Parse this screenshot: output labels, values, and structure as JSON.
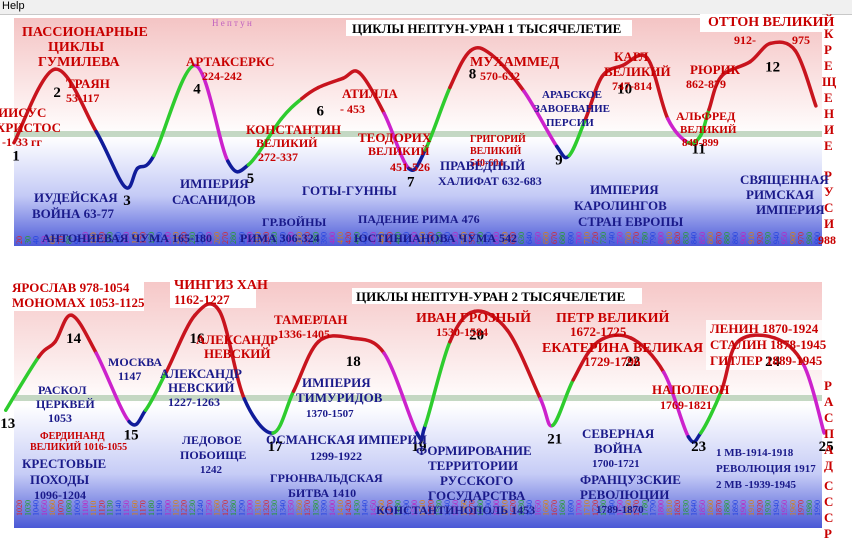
{
  "menu": {
    "help": "Help"
  },
  "colors": {
    "red": "#c8141e",
    "green": "#2ecc2e",
    "magenta": "#cc22cc",
    "navy": "#101c9a",
    "label_red": "#c80000",
    "label_navy": "#1a1a8a"
  },
  "chart_data": [
    {
      "type": "line",
      "title": "ЦИКЛЫ НЕПТУН-УРАН 1 ТЫСЯЧЕЛЕТИЕ",
      "header_left": "Н е п т у н",
      "x_start": 20,
      "x_end": 990,
      "x_step": 10,
      "points": [
        {
          "x": 10,
          "y": 0.42
        },
        {
          "x": 60,
          "y": 0.82
        },
        {
          "x": 110,
          "y": 0.48
        },
        {
          "x": 145,
          "y": 0.18
        },
        {
          "x": 160,
          "y": 0.28
        },
        {
          "x": 180,
          "y": 0.35
        },
        {
          "x": 230,
          "y": 0.84
        },
        {
          "x": 270,
          "y": 0.32
        },
        {
          "x": 295,
          "y": 0.3
        },
        {
          "x": 335,
          "y": 0.55
        },
        {
          "x": 360,
          "y": 0.66
        },
        {
          "x": 380,
          "y": 0.72
        },
        {
          "x": 410,
          "y": 0.77
        },
        {
          "x": 430,
          "y": 0.8
        },
        {
          "x": 460,
          "y": 0.58
        },
        {
          "x": 490,
          "y": 0.28
        },
        {
          "x": 510,
          "y": 0.38
        },
        {
          "x": 540,
          "y": 0.72
        },
        {
          "x": 565,
          "y": 0.92
        },
        {
          "x": 590,
          "y": 0.9
        },
        {
          "x": 630,
          "y": 0.7
        },
        {
          "x": 670,
          "y": 0.4
        },
        {
          "x": 685,
          "y": 0.35
        },
        {
          "x": 705,
          "y": 0.55
        },
        {
          "x": 725,
          "y": 0.78
        },
        {
          "x": 750,
          "y": 0.84
        },
        {
          "x": 780,
          "y": 0.88
        },
        {
          "x": 805,
          "y": 0.55
        },
        {
          "x": 830,
          "y": 0.42
        },
        {
          "x": 845,
          "y": 0.46
        },
        {
          "x": 855,
          "y": 0.6
        },
        {
          "x": 870,
          "y": 0.78
        },
        {
          "x": 905,
          "y": 0.86
        },
        {
          "x": 930,
          "y": 0.96
        },
        {
          "x": 960,
          "y": 0.92
        },
        {
          "x": 985,
          "y": 0.62
        }
      ],
      "numbers": [
        {
          "n": "1",
          "x": 10
        },
        {
          "n": "2",
          "x": 60
        },
        {
          "n": "3",
          "x": 145
        },
        {
          "n": "4",
          "x": 230
        },
        {
          "n": "5",
          "x": 295
        },
        {
          "n": "6",
          "x": 380
        },
        {
          "n": "7",
          "x": 490
        },
        {
          "n": "8",
          "x": 565
        },
        {
          "n": "9",
          "x": 670
        },
        {
          "n": "10",
          "x": 750
        },
        {
          "n": "11",
          "x": 840
        },
        {
          "n": "12",
          "x": 930
        }
      ],
      "labels_red": [
        "ИИСУС",
        "ХРИСТОС",
        "-1-33 гг",
        "ПАССИОНАРНЫЕ",
        "ЦИКЛЫ",
        "ГУМИЛЕВА",
        "ТРАЯН",
        "53-117",
        "АРТАКСЕРКС",
        "224-242",
        "КОНСТАНТИН",
        "ВЕЛИКИЙ",
        "272-337",
        "АТИЛЛА",
        "- 453",
        "ТЕОДОРИХ",
        "ВЕЛИКИЙ",
        "451-526",
        "МУХАММЕД",
        "570-632",
        "КАРЛ",
        "ВЕЛИКИЙ",
        "747-814",
        "РЮРИК",
        "862-879",
        "АЛЬФРЕД",
        "ВЕЛИКИЙ",
        "849-899",
        "ОТТОН ВЕЛИКИЙ",
        "912-",
        "975",
        "К",
        "Р",
        "Е",
        "Щ",
        "Е",
        "Н",
        "И",
        "Е",
        "Р",
        "У",
        "С",
        "И",
        "988",
        "ГРИГОРИЙ",
        "ВЕЛИКИЙ",
        "540-604"
      ],
      "labels_navy": [
        "ИУДЕЙСКАЯ",
        "ВОЙНА 63-77",
        "АНТОНИЕВАЯ ЧУМА 165-180",
        "ИМПЕРИЯ",
        "САСАНИДОВ",
        "ГР.ВОЙНЫ",
        "РИМА 306-324",
        "ГОТЫ-ГУННЫ",
        "ПАДЕНИЕ РИМА 476",
        "ЮСТИНИАНОВА ЧУМА 542",
        "ПРАВЕДНЫЙ",
        "ХАЛИФАТ 632-683",
        "АРАБСКОЕ",
        "ЗАВОЕВАНИЕ",
        "ПЕРСИИ",
        "ИМПЕРИЯ",
        "КАРОЛИНГОВ",
        "СТРАН ЕВРОПЫ",
        "СВЯЩЕННАЯ",
        "РИМСКАЯ",
        "ИМПЕРИЯ"
      ]
    },
    {
      "type": "line",
      "title": "ЦИКЛЫ НЕПТУН-УРАН 2 ТЫСЯЧЕЛЕТИЕ",
      "x_start": 1020,
      "x_end": 1990,
      "x_step": 10,
      "points": [
        {
          "x": 1000,
          "y": 0.42
        },
        {
          "x": 1040,
          "y": 0.7
        },
        {
          "x": 1060,
          "y": 0.78
        },
        {
          "x": 1080,
          "y": 0.92
        },
        {
          "x": 1110,
          "y": 0.72
        },
        {
          "x": 1150,
          "y": 0.36
        },
        {
          "x": 1170,
          "y": 0.42
        },
        {
          "x": 1195,
          "y": 0.62
        },
        {
          "x": 1230,
          "y": 0.92
        },
        {
          "x": 1260,
          "y": 0.94
        },
        {
          "x": 1290,
          "y": 0.48
        },
        {
          "x": 1325,
          "y": 0.3
        },
        {
          "x": 1350,
          "y": 0.52
        },
        {
          "x": 1380,
          "y": 0.78
        },
        {
          "x": 1420,
          "y": 0.8
        },
        {
          "x": 1460,
          "y": 0.72
        },
        {
          "x": 1500,
          "y": 0.3
        },
        {
          "x": 1510,
          "y": 0.34
        },
        {
          "x": 1540,
          "y": 0.78
        },
        {
          "x": 1570,
          "y": 0.94
        },
        {
          "x": 1610,
          "y": 0.84
        },
        {
          "x": 1650,
          "y": 0.48
        },
        {
          "x": 1665,
          "y": 0.34
        },
        {
          "x": 1690,
          "y": 0.58
        },
        {
          "x": 1720,
          "y": 0.78
        },
        {
          "x": 1760,
          "y": 0.8
        },
        {
          "x": 1800,
          "y": 0.62
        },
        {
          "x": 1830,
          "y": 0.28
        },
        {
          "x": 1845,
          "y": 0.3
        },
        {
          "x": 1870,
          "y": 0.52
        },
        {
          "x": 1890,
          "y": 0.78
        },
        {
          "x": 1935,
          "y": 0.8
        },
        {
          "x": 1970,
          "y": 0.66
        },
        {
          "x": 1995,
          "y": 0.3
        }
      ],
      "numbers": [
        {
          "n": "13",
          "x": 1000
        },
        {
          "n": "14",
          "x": 1080
        },
        {
          "n": "15",
          "x": 1150
        },
        {
          "n": "16",
          "x": 1230
        },
        {
          "n": "17",
          "x": 1325
        },
        {
          "n": "18",
          "x": 1420
        },
        {
          "n": "19",
          "x": 1500
        },
        {
          "n": "20",
          "x": 1570
        },
        {
          "n": "21",
          "x": 1665
        },
        {
          "n": "22",
          "x": 1760
        },
        {
          "n": "23",
          "x": 1840
        },
        {
          "n": "24",
          "x": 1930
        },
        {
          "n": "25",
          "x": 1995
        }
      ],
      "labels_red": [
        "ЯРОСЛАВ 978-1054",
        "МОНОМАХ 1053-1125",
        "ЧИНГИЗ ХАН",
        "1162-1227",
        "АЛЕКСАНДР",
        "НЕВСКИЙ",
        "ТАМЕРЛАН",
        "1336-1405",
        "ИВАН ГРОЗНЫЙ",
        "1530-1584",
        "ПЕТР ВЕЛИКИЙ",
        "1672-1725",
        "ЕКАТЕРИНА ВЕЛИКАЯ",
        "1729-1796",
        "НАПОЛЕОН",
        "1769-1821",
        "ЛЕНИН 1870-1924",
        "СТАЛИН 1878-1945",
        "ГИТЛЕР 1889-1945",
        "Р",
        "А",
        "С",
        "П",
        "А",
        "Д",
        "С",
        "С",
        "С",
        "Р",
        "ФЕРДИНАНД",
        "ВЕЛИКИЙ 1016-1055"
      ],
      "labels_navy": [
        "РАСКОЛ",
        "ЦЕРКВЕЙ",
        "1053",
        "КРЕСТОВЫЕ",
        "ПОХОДЫ",
        "1096-1204",
        "МОСКВА",
        "1147",
        "АЛЕКСАНДР",
        "НЕВСКИЙ",
        "1227-1263",
        "ЛЕДОВОЕ",
        "ПОБОИЩЕ",
        "1242",
        "ОСМАНСКАЯ ИМПЕРИЯ",
        "1299-1922",
        "ГРЮНВАЛЬДСКАЯ",
        "БИТВА 1410",
        "ИМПЕРИЯ",
        "ТИМУРИДОВ",
        "1370-1507",
        "КОНСТАНТИНОПОЛЬ 1453",
        "ФОРМИРОВАНИЕ",
        "ТЕРРИТОРИИ",
        "РУССКОГО",
        "ГОСУДАРСТВА",
        "СЕВЕРНАЯ",
        "ВОЙНА",
        "1700-1721",
        "ФРАНЦУЗСКИЕ",
        "РЕВОЛЮЦИИ",
        "1789-1870",
        "1 МВ-1914-1918",
        "РЕВОЛЮЦИЯ 1917",
        "2 МВ -1939-1945"
      ]
    }
  ]
}
